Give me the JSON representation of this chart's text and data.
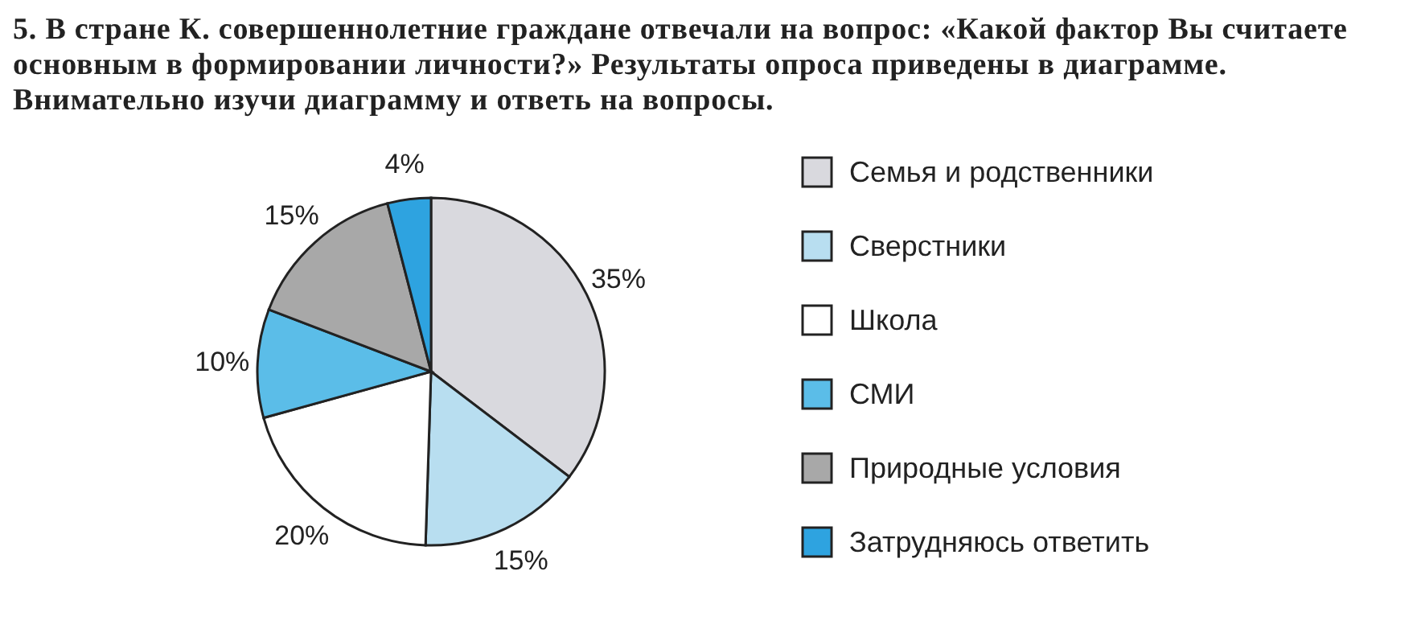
{
  "chart_data": {
    "type": "pie",
    "title": "5. В стране К. совершеннолетние граждане отвечали на вопрос: «Какой фактор Вы считаете основным в формировании личности?» Результаты опроса приведены в диаграмме. Внимательно изучи диаграмму и ответь на вопросы.",
    "categories": [
      "Семья и родственники",
      "Сверстники",
      "Школа",
      "СМИ",
      "Природные условия",
      "Затрудняюсь ответить"
    ],
    "values": [
      35,
      15,
      20,
      10,
      15,
      4
    ],
    "value_labels": [
      "35%",
      "15%",
      "20%",
      "10%",
      "15%",
      "4%"
    ],
    "colors": [
      "#d9d9de",
      "#b8def0",
      "#ffffff",
      "#5bbde8",
      "#a8a8a8",
      "#2ea3e0"
    ],
    "legend": "right"
  }
}
